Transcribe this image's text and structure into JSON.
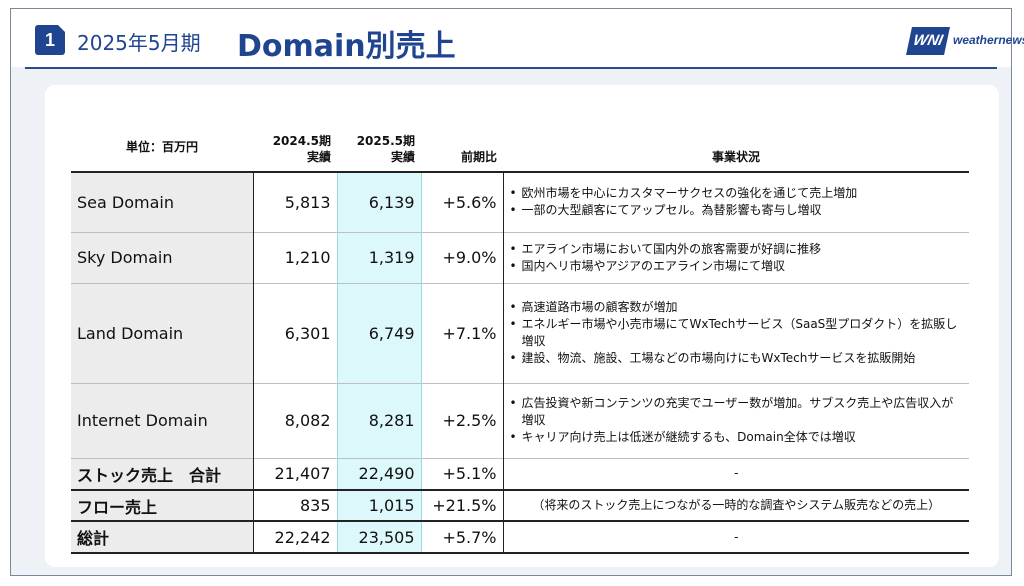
{
  "header": {
    "section_number": "1",
    "period": "2025年5月期",
    "title": "Domain別売上",
    "logo_mark": "WNI",
    "logo_text": "weathernews"
  },
  "table": {
    "columns": {
      "unit": "単位：百万円",
      "fy2024_line1": "2024.5期",
      "fy2024_line2": "実績",
      "fy2025_line1": "2025.5期",
      "fy2025_line2": "実績",
      "yoy": "前期比",
      "status": "事業状況"
    },
    "rows": [
      {
        "name": "Sea Domain",
        "fy2024": "5,813",
        "fy2025": "6,139",
        "yoy": "+5.6%",
        "status": [
          "欧州市場を中心にカスタマーサクセスの強化を通じて売上増加",
          "一部の大型顧客にてアップセル。為替影響も寄与し増収"
        ]
      },
      {
        "name": "Sky Domain",
        "fy2024": "1,210",
        "fy2025": "1,319",
        "yoy": "+9.0%",
        "status": [
          "エアライン市場において国内外の旅客需要が好調に推移",
          "国内ヘリ市場やアジアのエアライン市場にて増収"
        ]
      },
      {
        "name": "Land Domain",
        "fy2024": "6,301",
        "fy2025": "6,749",
        "yoy": "+7.1%",
        "status": [
          "高速道路市場の顧客数が増加",
          "エネルギー市場や小売市場にてWxTechサービス（SaaS型プロダクト）を拡販し増収",
          "建設、物流、施設、工場などの市場向けにもWxTechサービスを拡販開始"
        ]
      },
      {
        "name": "Internet Domain",
        "fy2024": "8,082",
        "fy2025": "8,281",
        "yoy": "+2.5%",
        "status": [
          "広告投資や新コンテンツの充実でユーザー数が増加。サブスク売上や広告収入が増収",
          "キャリア向け売上は低迷が継続するも、Domain全体では増収"
        ]
      }
    ],
    "stock_total": {
      "name": "ストック売上　合計",
      "fy2024": "21,407",
      "fy2025": "22,490",
      "yoy": "+5.1%",
      "status": "-"
    },
    "flow": {
      "name": "フロー売上",
      "fy2024": "835",
      "fy2025": "1,015",
      "yoy": "+21.5%",
      "status": "（将来のストック売上につながる一時的な調査やシステム販売などの売上）"
    },
    "grand_total": {
      "name": "総計",
      "fy2024": "22,242",
      "fy2025": "23,505",
      "yoy": "+5.7%",
      "status": "-"
    }
  }
}
